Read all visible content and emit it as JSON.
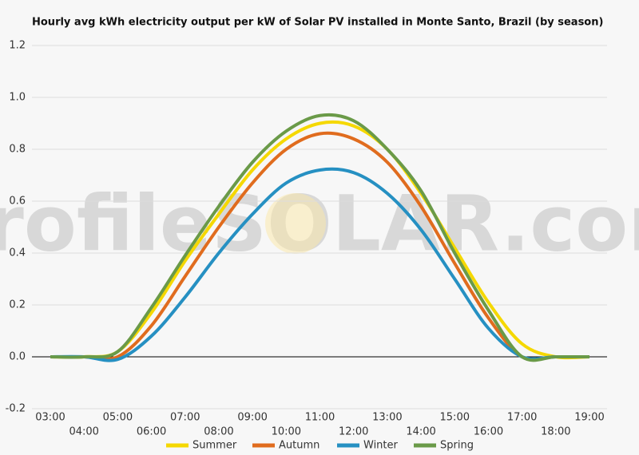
{
  "chart_data": {
    "type": "line",
    "title": "Hourly avg kWh electricity output per kW of Solar PV installed in Monte Santo, Brazil (by season)",
    "watermark": "profileSOLAR.com",
    "categories": [
      "03:00",
      "04:00",
      "05:00",
      "06:00",
      "07:00",
      "08:00",
      "09:00",
      "10:00",
      "11:00",
      "12:00",
      "13:00",
      "14:00",
      "15:00",
      "16:00",
      "17:00",
      "18:00",
      "19:00"
    ],
    "series": [
      {
        "name": "Summer",
        "color": "#f5d800",
        "values": [
          0,
          0,
          0.02,
          0.17,
          0.37,
          0.55,
          0.72,
          0.84,
          0.9,
          0.89,
          0.8,
          0.63,
          0.42,
          0.21,
          0.05,
          0,
          0
        ]
      },
      {
        "name": "Autumn",
        "color": "#e06c1e",
        "values": [
          0,
          0,
          0,
          0.12,
          0.31,
          0.5,
          0.67,
          0.8,
          0.86,
          0.84,
          0.75,
          0.58,
          0.36,
          0.15,
          0,
          0,
          0
        ]
      },
      {
        "name": "Winter",
        "color": "#2690c2",
        "values": [
          0,
          0,
          -0.01,
          0.08,
          0.23,
          0.4,
          0.55,
          0.67,
          0.72,
          0.71,
          0.63,
          0.49,
          0.3,
          0.11,
          0,
          0,
          0
        ]
      },
      {
        "name": "Spring",
        "color": "#6a9a48",
        "values": [
          0,
          0,
          0.02,
          0.19,
          0.39,
          0.58,
          0.75,
          0.87,
          0.93,
          0.91,
          0.8,
          0.64,
          0.4,
          0.18,
          0,
          0,
          0
        ]
      }
    ],
    "ylim": [
      -0.2,
      1.2
    ],
    "yticks": [
      -0.2,
      {
        "value": 0,
        "label": "0.0"
      },
      0.2,
      0.4,
      0.6,
      0.8,
      {
        "value": 1,
        "label": "1.0"
      },
      1.2
    ],
    "grid": true,
    "legend": "bottom"
  }
}
